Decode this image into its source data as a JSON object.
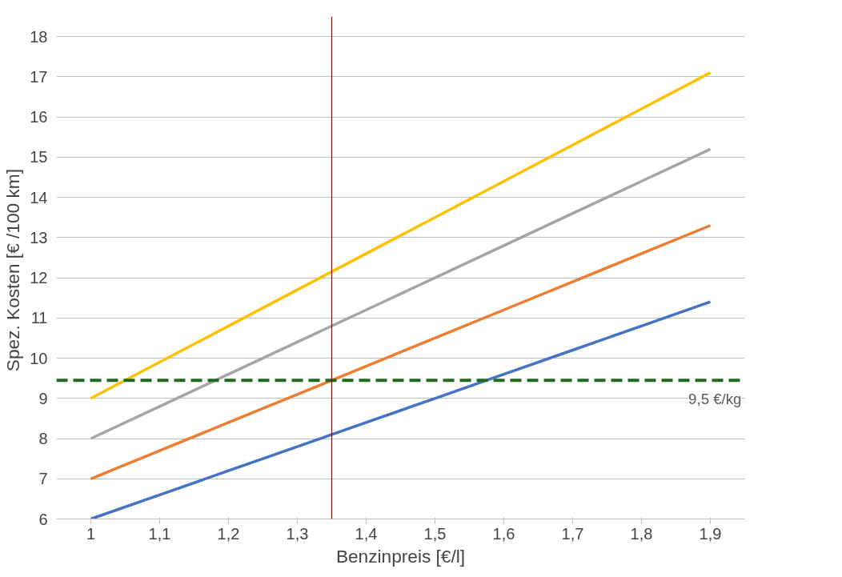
{
  "chart_data": {
    "type": "line",
    "xlabel": "Benzinpreis [€/l]",
    "ylabel": "Spez. Kosten  [€ /100 km]",
    "x": [
      1,
      1.1,
      1.2,
      1.3,
      1.4,
      1.5,
      1.6,
      1.7,
      1.8,
      1.9
    ],
    "series": [
      {
        "color": "#4472c4",
        "values": [
          6,
          6.6,
          7.2,
          7.8,
          8.4,
          9,
          9.6,
          10.2,
          10.8,
          11.4
        ]
      },
      {
        "color": "#ed7d31",
        "values": [
          7,
          7.7,
          8.4,
          9.1,
          9.8,
          10.5,
          11.2,
          11.9,
          12.6,
          13.3
        ]
      },
      {
        "color": "#a5a5a5",
        "values": [
          8,
          8.8,
          9.6,
          10.4,
          11.2,
          12,
          12.8,
          13.6,
          14.4,
          15.2
        ]
      },
      {
        "color": "#ffc000",
        "values": [
          9,
          9.9,
          10.8,
          11.7,
          12.6,
          13.5,
          14.4,
          15.3,
          16.2,
          17.1
        ]
      }
    ],
    "xlim": [
      0.95,
      1.95
    ],
    "ylim": [
      6,
      18.5
    ],
    "xticks": [
      1,
      {
        "value": 1.1,
        "label": "1,1"
      },
      {
        "value": 1.2,
        "label": "1,2"
      },
      {
        "value": 1.3,
        "label": "1,3"
      },
      {
        "value": 1.4,
        "label": "1,4"
      },
      {
        "value": 1.5,
        "label": "1,5"
      },
      {
        "value": 1.6,
        "label": "1,6"
      },
      {
        "value": 1.7,
        "label": "1,7"
      },
      {
        "value": 1.8,
        "label": "1,8"
      },
      {
        "value": 1.9,
        "label": "1,9"
      }
    ],
    "yticks": [
      6,
      7,
      8,
      9,
      10,
      11,
      12,
      13,
      14,
      15,
      16,
      17,
      18
    ],
    "ref_lines": [
      {
        "axis": "y",
        "value": 9.45,
        "label": "9,5 €/kg",
        "color": "#1e6b1e",
        "line_style": "dashed"
      },
      {
        "axis": "x",
        "value": 1.35,
        "color": "#a00000",
        "line_style": "solid"
      }
    ],
    "grid": "y",
    "marker": "none",
    "line_style": "solid"
  }
}
